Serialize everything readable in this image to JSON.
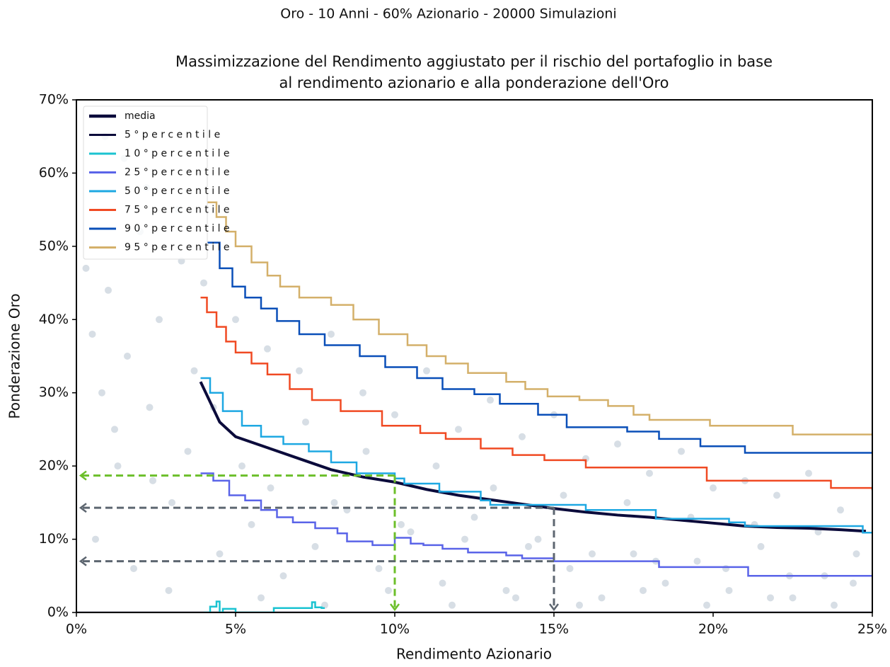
{
  "chart_data": {
    "type": "line",
    "suptitle": "Oro - 10 Anni - 60% Azionario - 20000 Simulazioni",
    "title_lines": [
      "Massimizzazione del Rendimento aggiustato per il rischio del portafoglio in base",
      "al rendimento azionario e alla ponderazione dell'Oro"
    ],
    "xlabel": "Rendimento Azionario",
    "ylabel": "Ponderazione Oro",
    "xlim": [
      0,
      25
    ],
    "ylim": [
      0,
      70
    ],
    "xticks": [
      {
        "value": 0,
        "label": "0%"
      },
      {
        "value": 5,
        "label": "5%"
      },
      {
        "value": 10,
        "label": "10%"
      },
      {
        "value": 15,
        "label": "15%"
      },
      {
        "value": 20,
        "label": "20%"
      },
      {
        "value": 25,
        "label": "25%"
      }
    ],
    "yticks": [
      {
        "value": 0,
        "label": "0%"
      },
      {
        "value": 10,
        "label": "10%"
      },
      {
        "value": 20,
        "label": "20%"
      },
      {
        "value": 30,
        "label": "30%"
      },
      {
        "value": 40,
        "label": "40%"
      },
      {
        "value": 50,
        "label": "50%"
      },
      {
        "value": 60,
        "label": "60%"
      },
      {
        "value": 70,
        "label": "70%"
      }
    ],
    "legend": "upper left",
    "scatter": {
      "color": "#c9d3dc",
      "x": [
        0.3,
        0.5,
        0.8,
        1.0,
        1.3,
        1.6,
        2.0,
        2.3,
        2.6,
        3.0,
        3.3,
        3.7,
        0.6,
        1.2,
        1.8,
        2.4,
        2.9,
        3.5,
        4.0,
        4.5,
        5.0,
        5.5,
        6.0,
        6.5,
        7.0,
        7.5,
        8.0,
        8.5,
        9.0,
        9.5,
        10.0,
        10.5,
        11.0,
        11.5,
        12.0,
        12.5,
        13.0,
        13.5,
        14.0,
        14.5,
        15.0,
        15.5,
        16.0,
        16.5,
        17.0,
        17.5,
        18.0,
        18.5,
        19.0,
        19.5,
        20.0,
        20.5,
        21.0,
        21.5,
        22.0,
        22.5,
        23.0,
        23.5,
        24.0,
        24.5,
        4.3,
        5.2,
        6.1,
        7.2,
        8.1,
        9.1,
        10.2,
        11.3,
        12.2,
        13.1,
        14.2,
        15.3,
        16.2,
        17.3,
        18.2,
        19.3,
        20.4,
        21.3,
        22.4,
        23.3,
        24.4,
        5.8,
        7.8,
        9.8,
        11.8,
        13.8,
        15.8,
        17.8,
        19.8,
        21.8,
        23.8,
        2.2,
        1.5,
        3.2,
        0.9
      ],
      "y": [
        47,
        38,
        30,
        44,
        20,
        35,
        52,
        28,
        40,
        15,
        48,
        33,
        10,
        25,
        6,
        18,
        3,
        22,
        45,
        8,
        40,
        12,
        36,
        5,
        33,
        9,
        38,
        14,
        30,
        6,
        27,
        11,
        33,
        4,
        25,
        13,
        29,
        3,
        24,
        10,
        27,
        6,
        21,
        2,
        23,
        8,
        19,
        4,
        22,
        7,
        17,
        3,
        18,
        9,
        16,
        2,
        19,
        5,
        14,
        8,
        28,
        20,
        17,
        26,
        15,
        22,
        12,
        20,
        10,
        17,
        9,
        16,
        8,
        15,
        7,
        13,
        6,
        12,
        5,
        11,
        4,
        2,
        1,
        3,
        1,
        2,
        1,
        3,
        1,
        2,
        1,
        58,
        62,
        55,
        65
      ]
    },
    "series": [
      {
        "name": "media",
        "color": "#0b0b3b",
        "drawstyle": "line",
        "width": 4,
        "x": [
          3.9,
          4.5,
          5,
          6,
          7,
          8,
          9,
          10,
          11,
          12,
          13,
          14,
          15,
          16,
          17,
          18,
          19,
          20,
          21,
          22,
          23,
          24,
          24.8
        ],
        "values": [
          31.5,
          26,
          24,
          22.5,
          21,
          19.5,
          18.5,
          17.8,
          16.8,
          16,
          15.4,
          14.8,
          14.2,
          13.7,
          13.3,
          13,
          12.6,
          12.2,
          11.8,
          11.6,
          11.5,
          11.3,
          11.1
        ]
      },
      {
        "name": "5 ° p e r c e n t i l e",
        "color": "#0b0b3b",
        "drawstyle": "steps-post",
        "width": 2.5,
        "x": [
          0,
          25
        ],
        "values": [
          0,
          0
        ]
      },
      {
        "name": "1 0 ° p e r c e n t i l e",
        "color": "#1bc3d1",
        "drawstyle": "steps-post",
        "width": 2.5,
        "x": [
          4.0,
          4.2,
          4.4,
          4.5,
          4.6,
          5.0,
          6.2,
          6.5,
          7.4,
          7.5,
          7.7,
          7.8
        ],
        "values": [
          0,
          0.8,
          1.5,
          0,
          0.5,
          0,
          0.6,
          0.6,
          1.4,
          0.7,
          0.6,
          0.6
        ]
      },
      {
        "name": "2 5 ° p e r c e n t i l e",
        "color": "#5a64e8",
        "drawstyle": "steps-post",
        "width": 2.5,
        "x": [
          3.9,
          4.3,
          4.8,
          5.3,
          5.8,
          6.3,
          6.8,
          7.5,
          8.2,
          8.5,
          9.3,
          10.0,
          10.5,
          10.9,
          11.5,
          12.3,
          13.5,
          14.0,
          15.0,
          18.3,
          21.1,
          25
        ],
        "values": [
          19,
          18,
          16,
          15.3,
          14,
          13,
          12.3,
          11.5,
          10.8,
          9.7,
          9.2,
          10.2,
          9.4,
          9.2,
          8.7,
          8.2,
          7.8,
          7.4,
          7.0,
          6.2,
          5.0,
          5.0
        ]
      },
      {
        "name": "5 0 ° p e r c e n t i l e",
        "color": "#1ea8e2",
        "drawstyle": "steps-post",
        "width": 2.5,
        "x": [
          3.9,
          4.2,
          4.6,
          5.2,
          5.8,
          6.5,
          7.3,
          8.0,
          8.8,
          10.0,
          10.3,
          11.4,
          12.7,
          13.0,
          14.5,
          16.0,
          18.2,
          20.5,
          21.0,
          24.7,
          25
        ],
        "values": [
          32,
          30,
          27.5,
          25.5,
          24,
          23,
          22,
          20.5,
          19,
          18.3,
          17.6,
          16.5,
          15.3,
          14.7,
          14.7,
          14,
          12.8,
          12.3,
          11.8,
          10.9,
          10.9
        ]
      },
      {
        "name": "7 5 ° p e r c e n t i l e",
        "color": "#f04a23",
        "drawstyle": "steps-post",
        "width": 2.5,
        "x": [
          3.9,
          4.1,
          4.4,
          4.7,
          5,
          5.5,
          6,
          6.7,
          7.4,
          8.3,
          9.6,
          10.8,
          11.6,
          12.7,
          13.7,
          14.7,
          16.0,
          19.8,
          23.7,
          25
        ],
        "values": [
          43,
          41,
          39,
          37,
          35.5,
          34,
          32.5,
          30.5,
          29,
          27.5,
          25.5,
          24.5,
          23.7,
          22.4,
          21.5,
          20.8,
          19.8,
          18.0,
          17.0,
          16.7
        ]
      },
      {
        "name": "9 0 ° p e r c e n t i l e",
        "color": "#0a4fb8",
        "drawstyle": "steps-post",
        "width": 2.5,
        "x": [
          4.1,
          4.5,
          4.9,
          5.3,
          5.8,
          6.3,
          7.0,
          7.8,
          8.9,
          9.7,
          10.7,
          11.5,
          12.5,
          13.3,
          14.5,
          15.4,
          17.3,
          18.3,
          19.6,
          21.0,
          25
        ],
        "values": [
          50.5,
          47,
          44.5,
          43,
          41.5,
          39.8,
          38,
          36.5,
          35,
          33.5,
          32,
          30.5,
          29.8,
          28.5,
          27,
          25.3,
          24.7,
          23.7,
          22.7,
          21.8,
          21.8
        ]
      },
      {
        "name": "9 5 ° p e r c e n t i l e",
        "color": "#d4b06a",
        "drawstyle": "steps-post",
        "width": 2.5,
        "x": [
          4.1,
          4.4,
          4.7,
          5,
          5.5,
          6,
          6.4,
          7,
          8,
          8.7,
          9.5,
          10.4,
          11,
          11.6,
          12.3,
          13.5,
          14.1,
          14.8,
          15.8,
          16.7,
          17.5,
          18.0,
          19.9,
          22.5,
          25
        ],
        "values": [
          56,
          54,
          52,
          50,
          47.8,
          46,
          44.5,
          43,
          42,
          40,
          38,
          36.5,
          35,
          34,
          32.7,
          31.5,
          30.5,
          29.5,
          29.0,
          28.2,
          27,
          26.3,
          25.5,
          24.3,
          24.3
        ]
      }
    ],
    "guides": [
      {
        "x": 10,
        "y": 18.7,
        "color": "#6cbf2a"
      },
      {
        "x": 15,
        "y": 14.3,
        "color": "#5d6670"
      },
      {
        "x": 15,
        "y": 7,
        "color": "#5d6670"
      }
    ]
  }
}
